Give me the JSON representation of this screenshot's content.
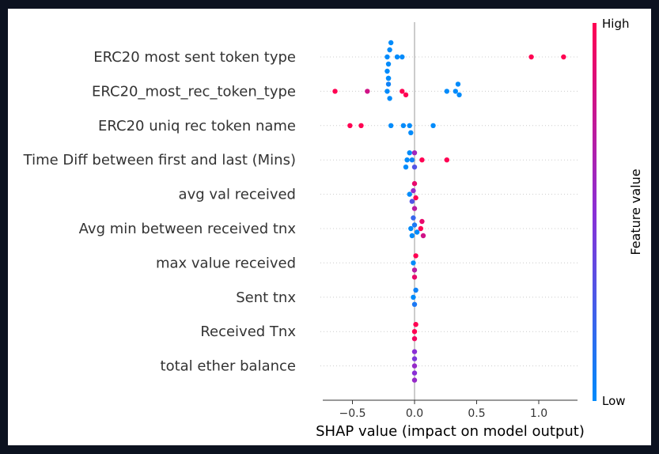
{
  "chart_data": {
    "type": "scatter",
    "subtype": "shap-beeswarm",
    "title": "",
    "xlabel": "SHAP value (impact on model output)",
    "xlim": [
      -0.72,
      1.3
    ],
    "xticks": [
      -0.5,
      0.0,
      0.5,
      1.0
    ],
    "xtick_labels": [
      "−0.5",
      "0.0",
      "0.5",
      "1.0"
    ],
    "grid": false,
    "colorbar": {
      "label": "Feature value",
      "high_label": "High",
      "low_label": "Low",
      "low_color": "#008bfb",
      "high_color": "#ff0052"
    },
    "features": [
      {
        "name": "ERC20 most sent token type",
        "points": [
          {
            "x": -0.22,
            "v": 0.0
          },
          {
            "x": -0.21,
            "v": 0.0
          },
          {
            "x": -0.2,
            "v": 0.0
          },
          {
            "x": -0.22,
            "v": 0.0
          },
          {
            "x": -0.19,
            "v": 0.0
          },
          {
            "x": -0.21,
            "v": 0.0
          },
          {
            "x": -0.14,
            "v": 0.0
          },
          {
            "x": -0.1,
            "v": 0.0
          },
          {
            "x": -0.21,
            "v": 0.0
          },
          {
            "x": 0.94,
            "v": 1.0
          },
          {
            "x": 1.2,
            "v": 1.0
          }
        ]
      },
      {
        "name": "ERC20_most_rec_token_type",
        "points": [
          {
            "x": -0.64,
            "v": 1.0
          },
          {
            "x": -0.38,
            "v": 0.8
          },
          {
            "x": -0.22,
            "v": 0.0
          },
          {
            "x": -0.2,
            "v": 0.0
          },
          {
            "x": -0.21,
            "v": 0.05
          },
          {
            "x": -0.1,
            "v": 1.0
          },
          {
            "x": -0.07,
            "v": 1.0
          },
          {
            "x": 0.26,
            "v": 0.0
          },
          {
            "x": 0.33,
            "v": 0.0
          },
          {
            "x": 0.36,
            "v": 0.0
          },
          {
            "x": 0.35,
            "v": 0.0
          }
        ]
      },
      {
        "name": "ERC20 uniq rec token name",
        "points": [
          {
            "x": -0.52,
            "v": 1.0
          },
          {
            "x": -0.43,
            "v": 1.0
          },
          {
            "x": -0.19,
            "v": 0.0
          },
          {
            "x": -0.09,
            "v": 0.0
          },
          {
            "x": -0.04,
            "v": 0.0
          },
          {
            "x": -0.03,
            "v": 0.0
          },
          {
            "x": 0.15,
            "v": 0.0
          }
        ]
      },
      {
        "name": "Time Diff between first and last (Mins)",
        "points": [
          {
            "x": -0.06,
            "v": 0.0
          },
          {
            "x": -0.07,
            "v": 0.0
          },
          {
            "x": -0.04,
            "v": 0.0
          },
          {
            "x": -0.02,
            "v": 0.05
          },
          {
            "x": 0.0,
            "v": 0.3
          },
          {
            "x": 0.0,
            "v": 0.6
          },
          {
            "x": 0.06,
            "v": 1.0
          },
          {
            "x": 0.26,
            "v": 1.0
          }
        ]
      },
      {
        "name": "avg val received",
        "points": [
          {
            "x": -0.04,
            "v": 0.0
          },
          {
            "x": -0.02,
            "v": 0.3
          },
          {
            "x": -0.01,
            "v": 0.55
          },
          {
            "x": 0.0,
            "v": 0.9
          },
          {
            "x": 0.01,
            "v": 1.0
          },
          {
            "x": 0.0,
            "v": 0.7
          }
        ]
      },
      {
        "name": "Avg min between received tnx",
        "points": [
          {
            "x": -0.03,
            "v": 0.0
          },
          {
            "x": -0.02,
            "v": 0.0
          },
          {
            "x": 0.0,
            "v": 0.1
          },
          {
            "x": 0.02,
            "v": 0.0
          },
          {
            "x": 0.05,
            "v": 1.0
          },
          {
            "x": 0.07,
            "v": 0.8
          },
          {
            "x": 0.06,
            "v": 0.9
          },
          {
            "x": -0.01,
            "v": 0.2
          }
        ]
      },
      {
        "name": "max value received ",
        "points": [
          {
            "x": -0.01,
            "v": 0.0
          },
          {
            "x": 0.0,
            "v": 0.7
          },
          {
            "x": 0.01,
            "v": 1.0
          },
          {
            "x": 0.0,
            "v": 0.9
          }
        ]
      },
      {
        "name": "Sent tnx",
        "points": [
          {
            "x": -0.01,
            "v": 0.0
          },
          {
            "x": 0.0,
            "v": 0.1
          },
          {
            "x": 0.01,
            "v": 0.05
          }
        ]
      },
      {
        "name": "Received Tnx",
        "points": [
          {
            "x": 0.0,
            "v": 1.0
          },
          {
            "x": 0.0,
            "v": 0.95
          },
          {
            "x": 0.01,
            "v": 1.0
          }
        ]
      },
      {
        "name": "total ether balance",
        "points": [
          {
            "x": 0.0,
            "v": 0.55
          },
          {
            "x": 0.0,
            "v": 0.5
          },
          {
            "x": 0.0,
            "v": 0.45
          },
          {
            "x": 0.0,
            "v": 0.55
          },
          {
            "x": 0.0,
            "v": 0.5
          }
        ]
      }
    ]
  }
}
